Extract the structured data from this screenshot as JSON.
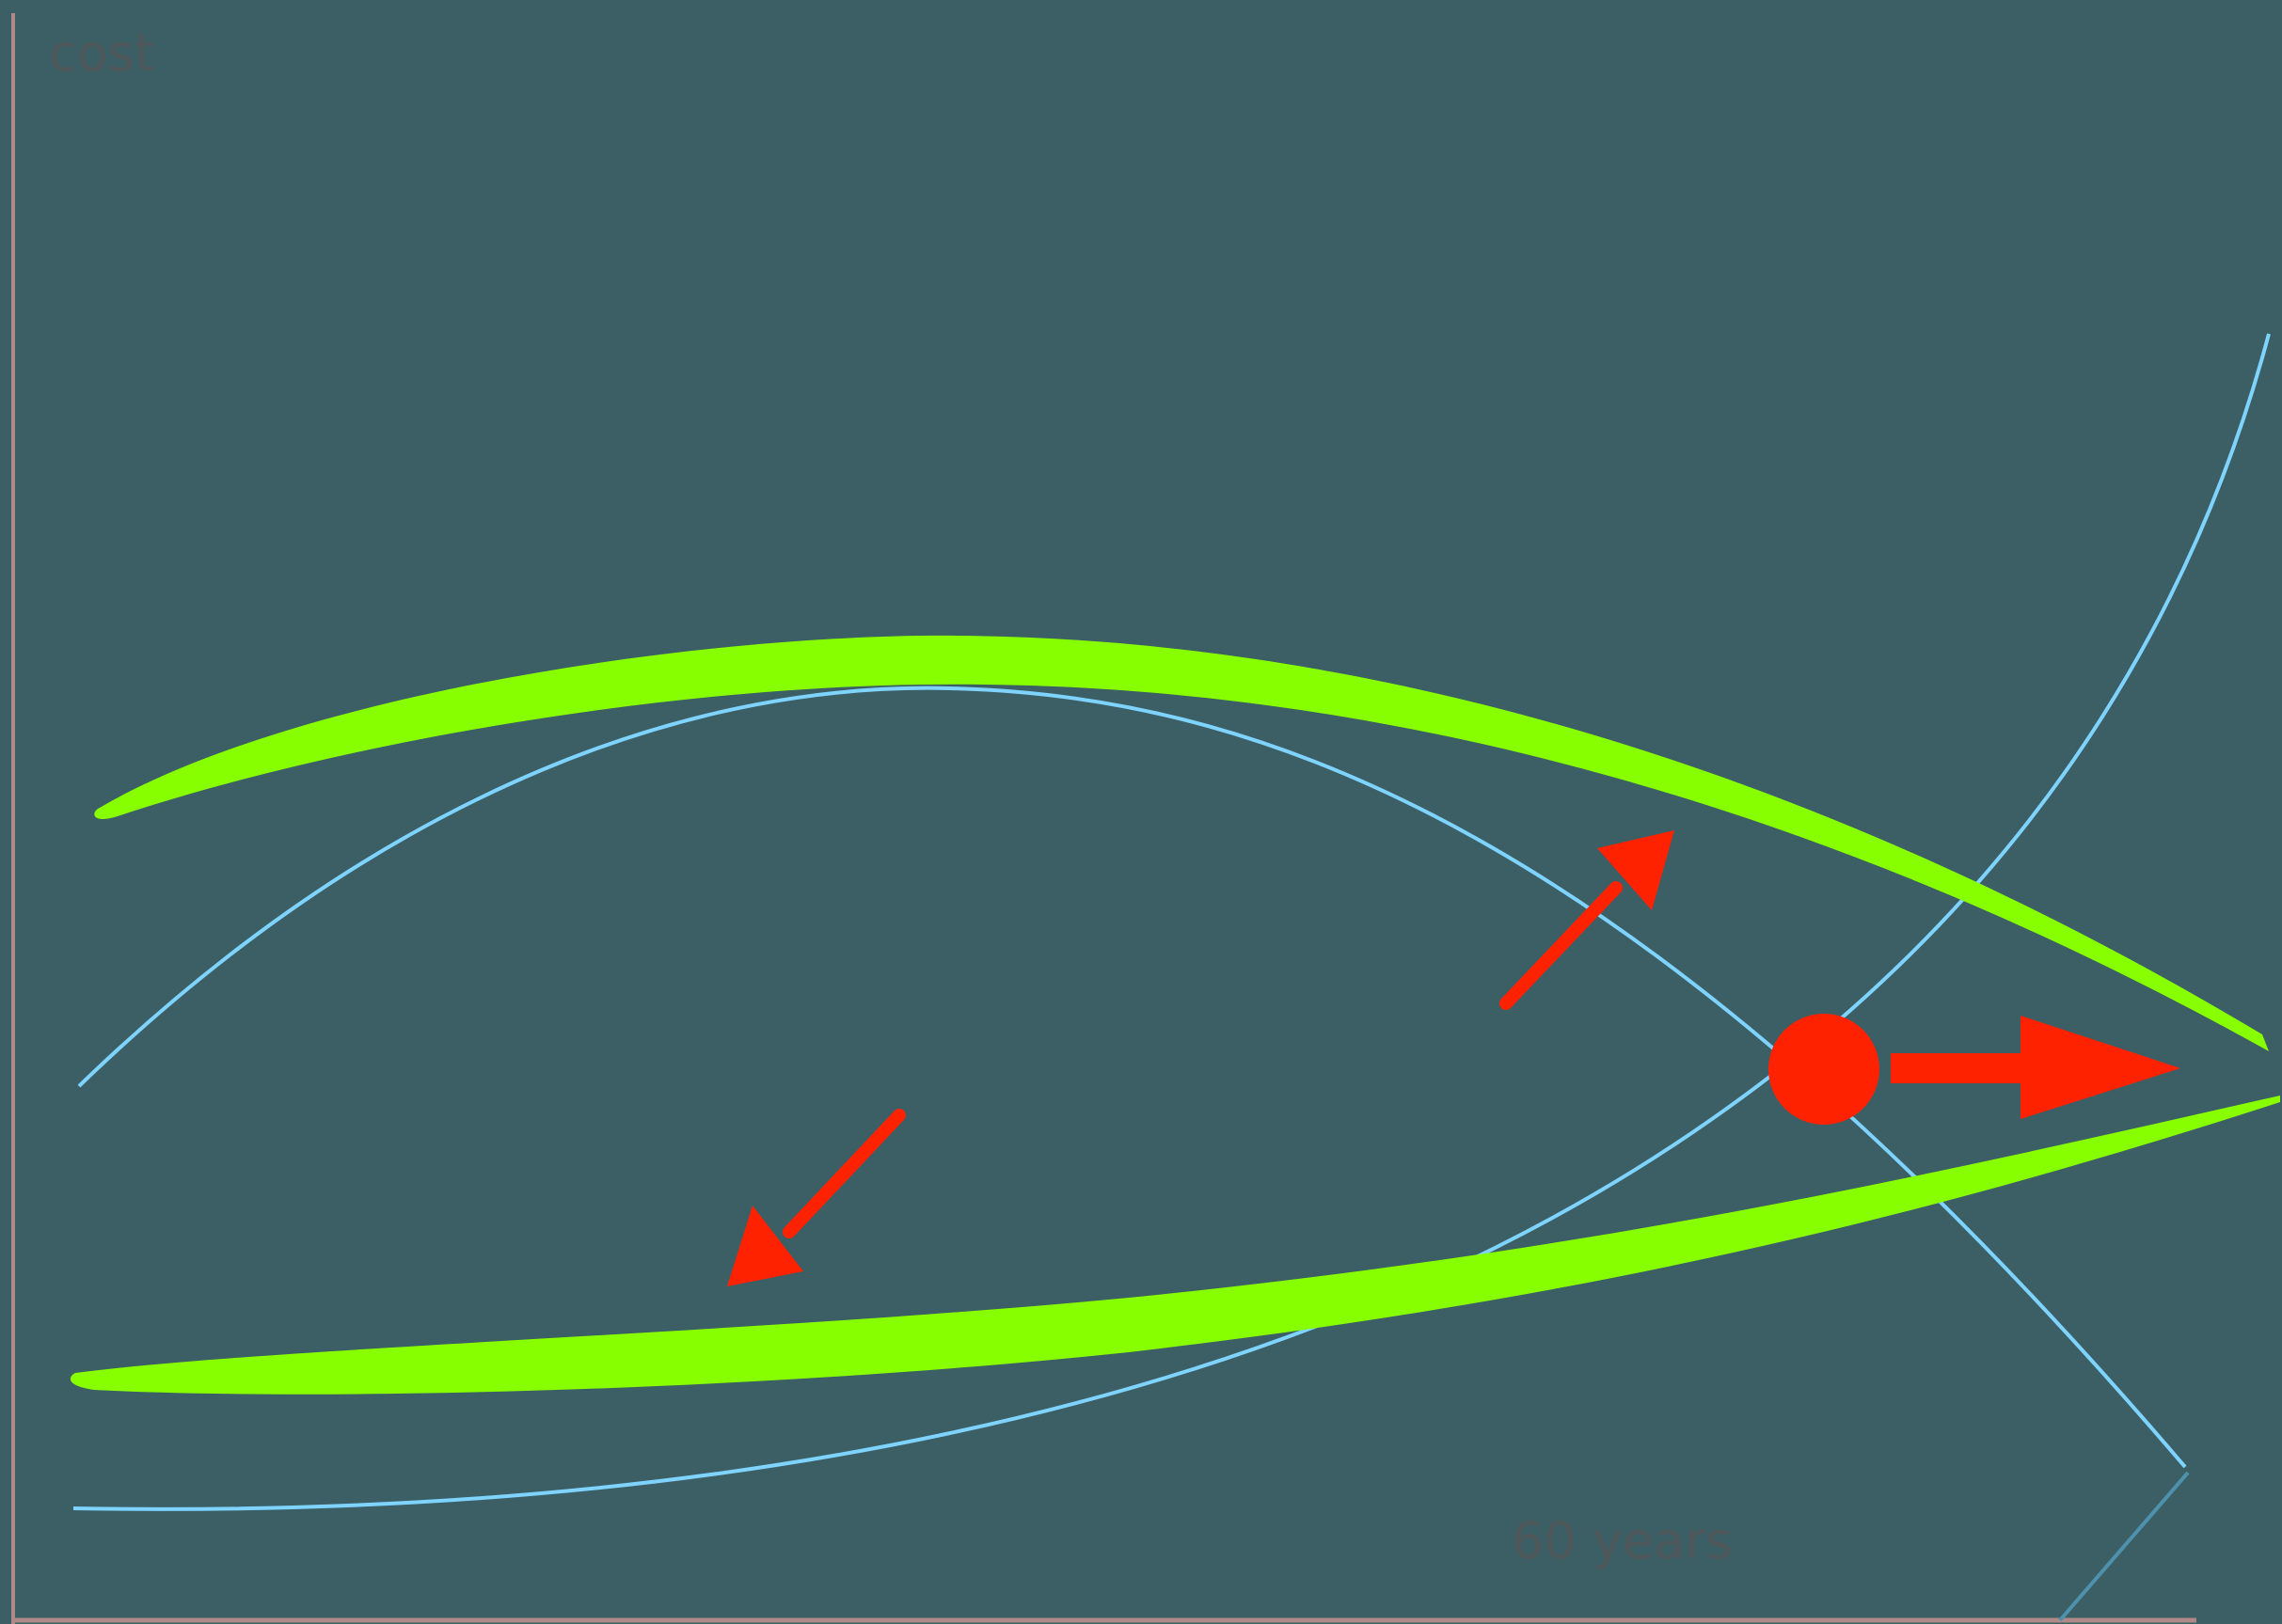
{
  "diagram": {
    "y_axis_label": "cost",
    "x_axis_label": "60 years",
    "colors": {
      "background": "#3c5f65",
      "axis": "#b08a86",
      "curve": "#7fd3ff",
      "band": "#88ff00",
      "marker": "#ff2200",
      "label": "#4e5759"
    },
    "elements": {
      "curves": [
        "rising-cost-curve",
        "falling-cost-curve",
        "total-cost-curve"
      ],
      "bands": [
        "upper-uncertainty-band",
        "lower-uncertainty-band"
      ],
      "markers": [
        "optimum-dot",
        "shift-right-arrow",
        "shift-up-arrow",
        "shift-down-arrow"
      ]
    }
  }
}
